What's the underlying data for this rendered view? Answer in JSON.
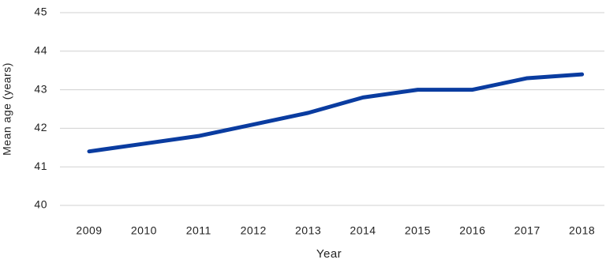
{
  "chart_data": {
    "type": "line",
    "x_label": "Year",
    "y_label": "Mean age (years)",
    "categories": [
      "2009",
      "2010",
      "2011",
      "2012",
      "2013",
      "2014",
      "2015",
      "2016",
      "2017",
      "2018"
    ],
    "series": [
      {
        "name": "Mean age",
        "color": "#0a3ca0",
        "values": [
          41.4,
          41.6,
          41.8,
          42.1,
          42.4,
          42.8,
          43.0,
          43.0,
          43.3,
          43.4
        ]
      }
    ],
    "ylim": [
      40,
      45
    ],
    "yticks": [
      40,
      41,
      42,
      43,
      44,
      45
    ],
    "grid": true
  }
}
